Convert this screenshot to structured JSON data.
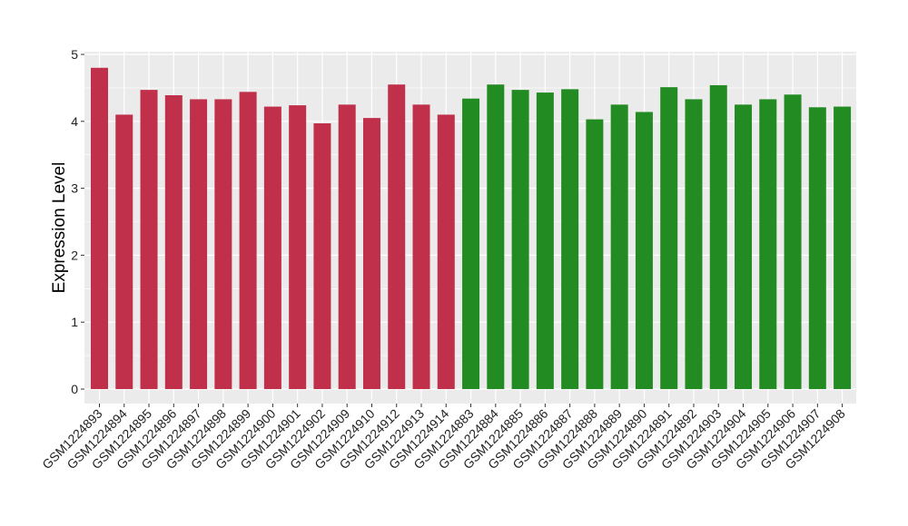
{
  "chart_data": {
    "type": "bar",
    "title": "",
    "xlabel": "",
    "ylabel": "Expression Level",
    "ylim": [
      -0.2,
      5
    ],
    "yticks": [
      0,
      1,
      2,
      3,
      4,
      5
    ],
    "grid": true,
    "legend": "none",
    "colors": {
      "group1": "#C0304A",
      "group2": "#228B22",
      "panel": "#EBEBEB",
      "grid": "#FFFFFF"
    },
    "categories": [
      "GSM1224893",
      "GSM1224894",
      "GSM1224895",
      "GSM1224896",
      "GSM1224897",
      "GSM1224898",
      "GSM1224899",
      "GSM1224900",
      "GSM1224901",
      "GSM1224902",
      "GSM1224909",
      "GSM1224910",
      "GSM1224912",
      "GSM1224913",
      "GSM1224914",
      "GSM1224883",
      "GSM1224884",
      "GSM1224885",
      "GSM1224886",
      "GSM1224887",
      "GSM1224888",
      "GSM1224889",
      "GSM1224890",
      "GSM1224891",
      "GSM1224892",
      "GSM1224903",
      "GSM1224904",
      "GSM1224905",
      "GSM1224906",
      "GSM1224907",
      "GSM1224908"
    ],
    "values": [
      4.8,
      4.1,
      4.47,
      4.39,
      4.33,
      4.33,
      4.44,
      4.22,
      4.24,
      3.97,
      4.25,
      4.05,
      4.55,
      4.25,
      4.1,
      4.34,
      4.55,
      4.47,
      4.43,
      4.48,
      4.03,
      4.25,
      4.14,
      4.51,
      4.33,
      4.54,
      4.25,
      4.33,
      4.4,
      4.21,
      4.22
    ],
    "groups": [
      "group1",
      "group1",
      "group1",
      "group1",
      "group1",
      "group1",
      "group1",
      "group1",
      "group1",
      "group1",
      "group1",
      "group1",
      "group1",
      "group1",
      "group1",
      "group2",
      "group2",
      "group2",
      "group2",
      "group2",
      "group2",
      "group2",
      "group2",
      "group2",
      "group2",
      "group2",
      "group2",
      "group2",
      "group2",
      "group2",
      "group2"
    ]
  }
}
